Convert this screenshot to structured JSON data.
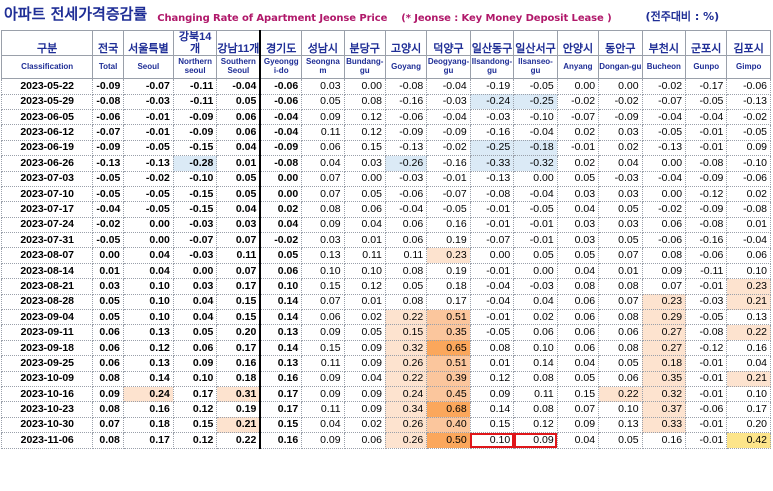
{
  "title": {
    "korean": "아파트 전세가격증감률",
    "english": "Changing Rate of Apartment Jeonse Price",
    "note": "(* Jeonse : Key Money Deposit Lease )",
    "unit": "(전주대비 : %)"
  },
  "columns": [
    {
      "kr": "구분",
      "en": "Classification"
    },
    {
      "kr": "전국",
      "en": "Total"
    },
    {
      "kr": "서울특별",
      "en": "Seoul"
    },
    {
      "kr": "강북14개",
      "en": "Northern seoul"
    },
    {
      "kr": "강남11개",
      "en": "Southern Seoul"
    },
    {
      "kr": "경기도",
      "en": "Gyeongg i-do"
    },
    {
      "kr": "성남시",
      "en": "Seongna m"
    },
    {
      "kr": "분당구",
      "en": "Bundang-gu"
    },
    {
      "kr": "고양시",
      "en": "Goyang"
    },
    {
      "kr": "덕양구",
      "en": "Deogyang-gu"
    },
    {
      "kr": "일산동구",
      "en": "Ilsandong-gu"
    },
    {
      "kr": "일산서구",
      "en": "Ilsanseo-gu"
    },
    {
      "kr": "안양시",
      "en": "Anyang"
    },
    {
      "kr": "동안구",
      "en": "Dongan-gu"
    },
    {
      "kr": "부천시",
      "en": "Bucheon"
    },
    {
      "kr": "군포시",
      "en": "Gunpo"
    },
    {
      "kr": "김포시",
      "en": "Gimpo"
    }
  ],
  "rows": [
    [
      "2023-05-22",
      "-0.09",
      "-0.07",
      "-0.11",
      "-0.04",
      "-0.06",
      "0.03",
      "0.00",
      "-0.08",
      "-0.04",
      "-0.19",
      "-0.05",
      "0.00",
      "0.00",
      "-0.02",
      "-0.17",
      "-0.06"
    ],
    [
      "2023-05-29",
      "-0.08",
      "-0.03",
      "-0.11",
      "0.05",
      "-0.06",
      "0.05",
      "0.08",
      "-0.16",
      "-0.03",
      "-0.24",
      "-0.25",
      "-0.02",
      "-0.02",
      "-0.07",
      "-0.05",
      "-0.13"
    ],
    [
      "2023-06-05",
      "-0.06",
      "-0.01",
      "-0.09",
      "0.06",
      "-0.04",
      "0.09",
      "0.12",
      "-0.06",
      "-0.04",
      "-0.03",
      "-0.10",
      "-0.07",
      "-0.09",
      "-0.04",
      "-0.04",
      "-0.02"
    ],
    [
      "2023-06-12",
      "-0.07",
      "-0.01",
      "-0.09",
      "0.06",
      "-0.04",
      "0.11",
      "0.12",
      "-0.09",
      "-0.09",
      "-0.16",
      "-0.04",
      "0.02",
      "0.03",
      "-0.05",
      "-0.01",
      "-0.05"
    ],
    [
      "2023-06-19",
      "-0.09",
      "-0.05",
      "-0.15",
      "0.04",
      "-0.09",
      "0.06",
      "0.15",
      "-0.13",
      "-0.02",
      "-0.25",
      "-0.18",
      "-0.01",
      "0.02",
      "-0.13",
      "-0.01",
      "0.09"
    ],
    [
      "2023-06-26",
      "-0.13",
      "-0.13",
      "-0.28",
      "0.01",
      "-0.08",
      "0.04",
      "0.03",
      "-0.26",
      "-0.16",
      "-0.33",
      "-0.32",
      "0.02",
      "0.04",
      "0.00",
      "-0.08",
      "-0.10"
    ],
    [
      "2023-07-03",
      "-0.05",
      "-0.02",
      "-0.10",
      "0.05",
      "0.00",
      "0.07",
      "0.00",
      "-0.03",
      "-0.01",
      "-0.13",
      "0.00",
      "0.05",
      "-0.03",
      "-0.04",
      "-0.09",
      "-0.06"
    ],
    [
      "2023-07-10",
      "-0.05",
      "-0.05",
      "-0.15",
      "0.05",
      "0.00",
      "0.07",
      "0.05",
      "-0.06",
      "-0.07",
      "-0.08",
      "-0.04",
      "0.03",
      "0.03",
      "0.00",
      "-0.12",
      "0.02"
    ],
    [
      "2023-07-17",
      "-0.04",
      "-0.05",
      "-0.15",
      "0.04",
      "0.02",
      "0.08",
      "0.06",
      "-0.04",
      "-0.05",
      "-0.01",
      "-0.05",
      "0.04",
      "0.05",
      "-0.02",
      "-0.09",
      "-0.08"
    ],
    [
      "2023-07-24",
      "-0.02",
      "0.00",
      "-0.03",
      "0.03",
      "0.04",
      "0.09",
      "0.04",
      "0.06",
      "0.16",
      "-0.01",
      "-0.01",
      "0.03",
      "0.03",
      "0.06",
      "-0.08",
      "0.01"
    ],
    [
      "2023-07-31",
      "-0.05",
      "0.00",
      "-0.07",
      "0.07",
      "-0.02",
      "0.03",
      "0.01",
      "0.06",
      "0.19",
      "-0.07",
      "-0.01",
      "0.03",
      "0.05",
      "-0.06",
      "-0.16",
      "-0.04"
    ],
    [
      "2023-08-07",
      "0.00",
      "0.04",
      "-0.03",
      "0.11",
      "0.05",
      "0.13",
      "0.11",
      "0.11",
      "0.23",
      "0.00",
      "0.05",
      "0.05",
      "0.07",
      "0.08",
      "-0.06",
      "0.06"
    ],
    [
      "2023-08-14",
      "0.01",
      "0.04",
      "0.00",
      "0.07",
      "0.06",
      "0.10",
      "0.10",
      "0.08",
      "0.19",
      "-0.01",
      "0.00",
      "0.04",
      "0.01",
      "0.09",
      "-0.11",
      "0.10"
    ],
    [
      "2023-08-21",
      "0.03",
      "0.10",
      "0.03",
      "0.17",
      "0.10",
      "0.15",
      "0.12",
      "0.05",
      "0.18",
      "-0.04",
      "-0.03",
      "0.08",
      "0.08",
      "0.07",
      "-0.01",
      "0.23"
    ],
    [
      "2023-08-28",
      "0.05",
      "0.10",
      "0.04",
      "0.15",
      "0.14",
      "0.07",
      "0.01",
      "0.08",
      "0.17",
      "-0.04",
      "0.04",
      "0.06",
      "0.07",
      "0.23",
      "-0.03",
      "0.21"
    ],
    [
      "2023-09-04",
      "0.05",
      "0.10",
      "0.04",
      "0.15",
      "0.14",
      "0.06",
      "0.02",
      "0.22",
      "0.51",
      "-0.01",
      "0.02",
      "0.06",
      "0.08",
      "0.29",
      "-0.05",
      "0.13"
    ],
    [
      "2023-09-11",
      "0.06",
      "0.13",
      "0.05",
      "0.20",
      "0.13",
      "0.09",
      "0.05",
      "0.15",
      "0.35",
      "-0.05",
      "0.06",
      "0.06",
      "0.06",
      "0.27",
      "-0.08",
      "0.22"
    ],
    [
      "2023-09-18",
      "0.06",
      "0.12",
      "0.06",
      "0.17",
      "0.14",
      "0.15",
      "0.09",
      "0.32",
      "0.65",
      "0.08",
      "0.10",
      "0.06",
      "0.08",
      "0.27",
      "-0.12",
      "0.16"
    ],
    [
      "2023-09-25",
      "0.06",
      "0.13",
      "0.09",
      "0.16",
      "0.13",
      "0.11",
      "0.09",
      "0.26",
      "0.51",
      "0.01",
      "0.14",
      "0.04",
      "0.05",
      "0.18",
      "-0.01",
      "0.04"
    ],
    [
      "2023-10-09",
      "0.08",
      "0.14",
      "0.10",
      "0.18",
      "0.16",
      "0.09",
      "0.04",
      "0.22",
      "0.39",
      "0.12",
      "0.08",
      "0.05",
      "0.06",
      "0.35",
      "-0.01",
      "0.21"
    ],
    [
      "2023-10-16",
      "0.09",
      "0.24",
      "0.17",
      "0.31",
      "0.17",
      "0.09",
      "0.09",
      "0.24",
      "0.45",
      "0.09",
      "0.11",
      "0.15",
      "0.22",
      "0.32",
      "-0.01",
      "0.10"
    ],
    [
      "2023-10-23",
      "0.08",
      "0.16",
      "0.12",
      "0.19",
      "0.17",
      "0.11",
      "0.09",
      "0.34",
      "0.68",
      "0.14",
      "0.08",
      "0.07",
      "0.10",
      "0.37",
      "-0.06",
      "0.17"
    ],
    [
      "2023-10-30",
      "0.07",
      "0.18",
      "0.15",
      "0.21",
      "0.15",
      "0.04",
      "0.02",
      "0.26",
      "0.40",
      "0.15",
      "0.12",
      "0.09",
      "0.13",
      "0.33",
      "-0.01",
      "0.20"
    ],
    [
      "2023-11-06",
      "0.08",
      "0.17",
      "0.12",
      "0.22",
      "0.16",
      "0.09",
      "0.06",
      "0.26",
      "0.50",
      "0.10",
      "0.09",
      "0.04",
      "0.05",
      "0.16",
      "-0.01",
      "0.42"
    ]
  ]
}
